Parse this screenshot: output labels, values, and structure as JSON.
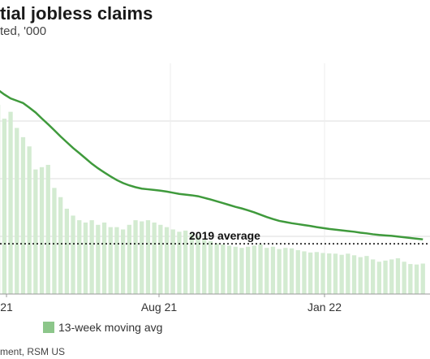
{
  "title": "tial jobless claims",
  "subtitle": "ted, '000",
  "source": "ment, RSM US",
  "colors": {
    "bars": "#d3ebd1",
    "line": "#3f9a3c",
    "legend_swatch": "#8cc68a",
    "grid": "#dddddd",
    "reference": "#000000"
  },
  "chart_data": {
    "type": "bar",
    "x_tick_labels": [
      "21",
      "Aug 21",
      "Jan 22"
    ],
    "ylim": [
      0,
      1000
    ],
    "grid": true,
    "legend": "bottom",
    "reference_line": {
      "label": "2019 average",
      "value": 218
    },
    "series": [
      {
        "kind": "bar",
        "values": [
          820,
          760,
          790,
          720,
          680,
          640,
          540,
          550,
          560,
          460,
          420,
          370,
          340,
          320,
          310,
          320,
          300,
          310,
          290,
          290,
          280,
          300,
          320,
          315,
          320,
          310,
          300,
          290,
          280,
          270,
          275,
          260,
          250,
          235,
          230,
          220,
          215,
          210,
          205,
          200,
          205,
          210,
          215,
          200,
          205,
          195,
          200,
          198,
          190,
          185,
          180,
          182,
          178,
          176,
          175,
          170,
          175,
          168,
          160,
          165,
          150,
          140,
          145,
          150,
          155,
          140,
          130,
          128,
          132
        ]
      },
      {
        "kind": "line",
        "name": "13-week moving avg",
        "values": [
          885,
          865,
          848,
          838,
          828,
          808,
          787,
          761,
          736,
          710,
          683,
          658,
          633,
          611,
          588,
          565,
          545,
          527,
          510,
          494,
          481,
          471,
          463,
          457,
          454,
          451,
          448,
          444,
          439,
          434,
          431,
          428,
          424,
          417,
          410,
          402,
          394,
          386,
          378,
          371,
          363,
          354,
          344,
          334,
          325,
          317,
          312,
          307,
          303,
          299,
          295,
          290,
          286,
          282,
          279,
          276,
          273,
          270,
          266,
          263,
          259,
          256,
          254,
          252,
          249,
          246,
          243,
          240,
          237
        ]
      }
    ]
  }
}
